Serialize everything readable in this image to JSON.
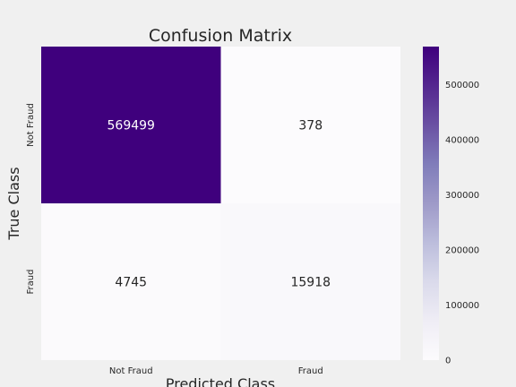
{
  "chart_data": {
    "type": "heatmap",
    "title": "Confusion Matrix",
    "xlabel": "Predicted Class",
    "ylabel": "True Class",
    "x_categories": [
      "Not Fraud",
      "Fraud"
    ],
    "y_categories": [
      "Not Fraud",
      "Fraud"
    ],
    "values": [
      [
        569499,
        378
      ],
      [
        4745,
        15918
      ]
    ],
    "colormap": "Purples",
    "color_low": "#fcfbfd",
    "color_high": "#3f007d",
    "colorbar": {
      "range": [
        0,
        569499
      ],
      "ticks": [
        0,
        100000,
        200000,
        300000,
        400000,
        500000
      ],
      "tick_labels": [
        "0",
        "100000",
        "200000",
        "300000",
        "400000",
        "500000"
      ]
    },
    "grid": false,
    "background": "#f0f0f0"
  }
}
